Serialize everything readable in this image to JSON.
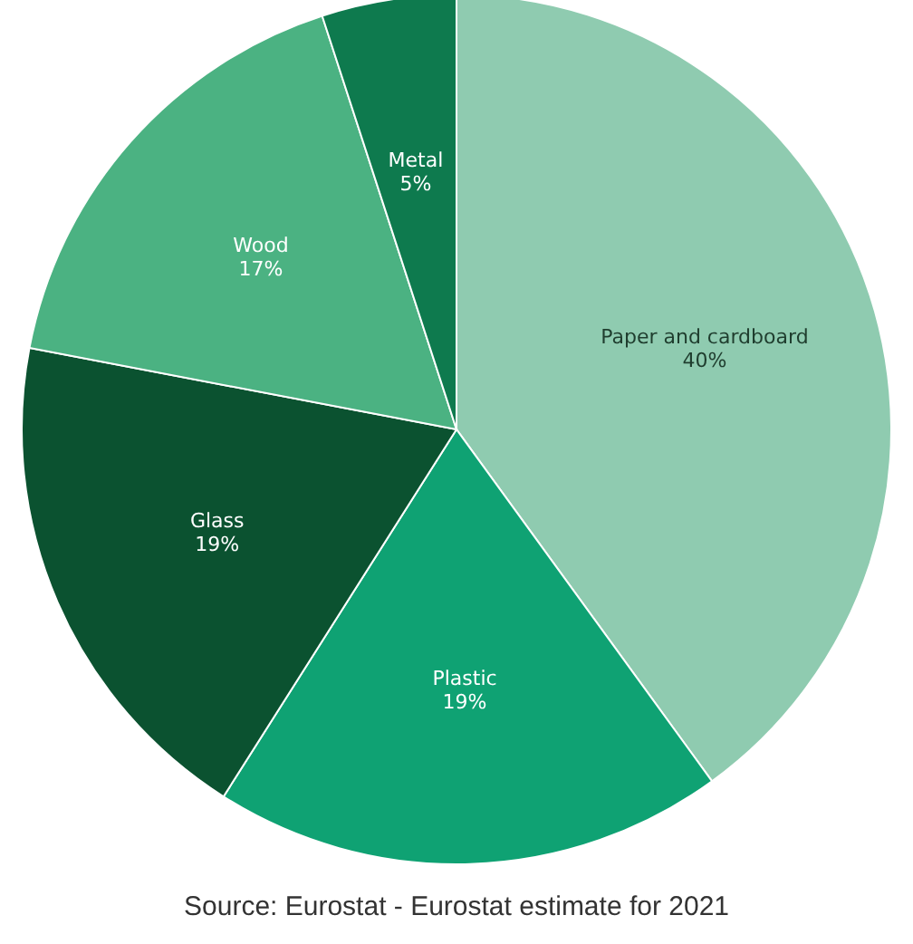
{
  "chart_data": {
    "type": "pie",
    "categories": [
      "Paper and cardboard",
      "Plastic",
      "Glass",
      "Wood",
      "Metal"
    ],
    "values": [
      40,
      19,
      19,
      17,
      5
    ],
    "value_labels": [
      "40%",
      "19%",
      "19%",
      "17%",
      "5%"
    ],
    "colors": [
      "#8fcbb0",
      "#0fa273",
      "#0b5230",
      "#4bb282",
      "#0e7a4e"
    ],
    "annotations": [
      "Source: Eurostat - Eurostat estimate for 2021"
    ]
  }
}
